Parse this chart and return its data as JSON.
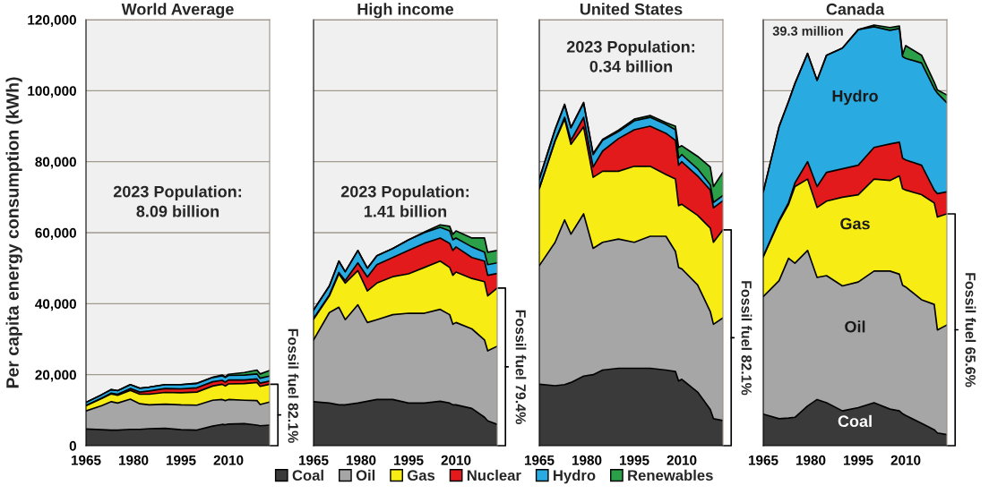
{
  "chart_data": [
    {
      "type": "area",
      "title": "World Average",
      "ylabel": "Per capita energy consumption (kWh)",
      "stacked": true,
      "grid": "y",
      "x": [
        1965,
        1970,
        1973,
        1975,
        1979,
        1982,
        1985,
        1990,
        1995,
        2000,
        2005,
        2008,
        2009,
        2010,
        2015,
        2019,
        2020,
        2023
      ],
      "xlim": [
        1965,
        2023
      ],
      "xticks": [
        1965,
        1980,
        1995,
        2010
      ],
      "ylim": [
        0,
        120000
      ],
      "yticks": [
        {
          "value": 0,
          "label": "0"
        },
        {
          "value": 20000,
          "label": "20,000"
        },
        {
          "value": 40000,
          "label": "40,000"
        },
        {
          "value": 60000,
          "label": "60,000"
        },
        {
          "value": 80000,
          "label": "80,000"
        },
        {
          "value": 100000,
          "label": "100,000"
        },
        {
          "value": 120000,
          "label": "120,000"
        }
      ],
      "series": [
        {
          "color": "#3a3a3a",
          "values": [
            4700,
            4500,
            4400,
            4400,
            4600,
            4600,
            4800,
            4900,
            4500,
            4400,
            5500,
            6000,
            5900,
            6100,
            6200,
            5800,
            5600,
            5800
          ]
        },
        {
          "color": "#a6a6a6",
          "values": [
            5100,
            6800,
            8000,
            7600,
            8500,
            7200,
            6700,
            6800,
            7000,
            7000,
            7300,
            7000,
            6800,
            6900,
            6600,
            6900,
            6000,
            6500
          ]
        },
        {
          "color": "#f7ec13",
          "values": [
            1500,
            2000,
            2200,
            2200,
            2500,
            2700,
            3000,
            3300,
            3400,
            3700,
            4000,
            4300,
            4100,
            4400,
            4700,
            5100,
            5100,
            5000
          ]
        },
        {
          "color": "#e31a1c",
          "values": [
            0,
            100,
            200,
            300,
            500,
            600,
            900,
            1100,
            1100,
            1200,
            1200,
            1100,
            1100,
            1100,
            1000,
            1000,
            900,
            900
          ]
        },
        {
          "color": "#29abe2",
          "values": [
            900,
            1000,
            1000,
            1000,
            1100,
            1100,
            1100,
            1100,
            1200,
            1200,
            1200,
            1300,
            1300,
            1300,
            1400,
            1400,
            1400,
            1400
          ]
        },
        {
          "color": "#2ca049",
          "values": [
            0,
            0,
            0,
            0,
            0,
            0,
            0,
            0,
            0,
            100,
            100,
            200,
            200,
            300,
            700,
            1100,
            1200,
            1600
          ]
        }
      ],
      "annotations": [
        "2023 Population:\n8.09 billion",
        "Fossil fuel 82.1%"
      ]
    },
    {
      "type": "area",
      "title": "High income",
      "stacked": true,
      "grid": "y",
      "legend": "bottom",
      "tick_labels": "x",
      "x": [
        1965,
        1970,
        1973,
        1975,
        1979,
        1982,
        1985,
        1990,
        1995,
        2000,
        2005,
        2008,
        2009,
        2010,
        2015,
        2019,
        2020,
        2023
      ],
      "xlim": [
        1965,
        2023
      ],
      "xticks": [
        1965,
        1980,
        1995,
        2010
      ],
      "ylim": [
        0,
        120000
      ],
      "yticks": [
        0,
        20000,
        40000,
        60000,
        80000,
        100000,
        120000
      ],
      "series": [
        {
          "name": "Coal",
          "color": "#3a3a3a",
          "values": [
            12400,
            12000,
            11500,
            11500,
            12000,
            12500,
            13000,
            13000,
            12000,
            12000,
            12500,
            12000,
            11500,
            11500,
            10500,
            8000,
            7000,
            6000
          ]
        },
        {
          "name": "Oil",
          "color": "#a6a6a6",
          "values": [
            17400,
            25500,
            27500,
            24000,
            27700,
            22200,
            22500,
            23900,
            25300,
            25300,
            25900,
            24900,
            22700,
            23200,
            22400,
            21800,
            19700,
            22000
          ]
        },
        {
          "name": "Gas",
          "color": "#f7ec13",
          "values": [
            5800,
            4700,
            9400,
            10300,
            9600,
            8900,
            10300,
            10700,
            11100,
            12900,
            13600,
            13300,
            13800,
            14200,
            14200,
            16400,
            15500,
            16400
          ]
        },
        {
          "name": "Nuclear",
          "color": "#e31a1c",
          "values": [
            200,
            300,
            400,
            700,
            2200,
            3900,
            5200,
            5400,
            6600,
            6800,
            6500,
            6800,
            7000,
            7100,
            5900,
            5800,
            5800,
            4100
          ]
        },
        {
          "name": "Hydro",
          "color": "#29abe2",
          "values": [
            2400,
            2500,
            3200,
            2500,
            3500,
            2500,
            2500,
            2500,
            3000,
            3000,
            3000,
            3500,
            3000,
            2500,
            3000,
            2500,
            3000,
            3000
          ]
        },
        {
          "name": "Renewables",
          "color": "#2ca049",
          "values": [
            0,
            0,
            0,
            0,
            0,
            0,
            0,
            0,
            0,
            200,
            700,
            1300,
            1500,
            2000,
            2500,
            4000,
            3500,
            3500
          ]
        }
      ],
      "annotations": [
        "2023 Population:\n1.41 billion",
        "Fossil fuel 79.4%"
      ]
    },
    {
      "type": "area",
      "title": "United States",
      "stacked": true,
      "grid": "y",
      "tick_labels": "x",
      "x": [
        1965,
        1970,
        1973,
        1975,
        1979,
        1982,
        1985,
        1990,
        1995,
        2000,
        2005,
        2008,
        2009,
        2010,
        2015,
        2019,
        2020,
        2023
      ],
      "xlim": [
        1965,
        2023
      ],
      "xticks": [
        1965,
        1980,
        1995,
        2010
      ],
      "ylim": [
        0,
        120000
      ],
      "yticks": [
        0,
        20000,
        40000,
        60000,
        80000,
        100000,
        120000
      ],
      "series": [
        {
          "color": "#3a3a3a",
          "values": [
            17300,
            16900,
            17200,
            17800,
            19600,
            20000,
            21300,
            21800,
            21800,
            21800,
            21300,
            20900,
            18200,
            18700,
            15100,
            10200,
            7600,
            7100
          ]
        },
        {
          "color": "#a6a6a6",
          "values": [
            33400,
            40400,
            46400,
            41800,
            45700,
            35600,
            36000,
            36400,
            35500,
            37200,
            37700,
            33800,
            32000,
            31100,
            30200,
            27600,
            26600,
            28900
          ]
        },
        {
          "color": "#f7ec13",
          "values": [
            21700,
            28500,
            28400,
            25300,
            24500,
            20000,
            20000,
            19100,
            21400,
            19700,
            17400,
            20400,
            17400,
            18200,
            19600,
            23500,
            23100,
            24800
          ]
        },
        {
          "color": "#e31a1c",
          "values": [
            100,
            200,
            500,
            1100,
            2700,
            2900,
            5700,
            9200,
            10300,
            11300,
            11600,
            10900,
            11400,
            12000,
            11100,
            10700,
            9700,
            8200
          ]
        },
        {
          "color": "#29abe2",
          "values": [
            2500,
            3000,
            3500,
            3500,
            4000,
            3500,
            3000,
            2000,
            2500,
            2500,
            2500,
            3000,
            2000,
            2000,
            2000,
            1500,
            1500,
            1500
          ]
        },
        {
          "color": "#2ca049",
          "values": [
            200,
            200,
            200,
            200,
            200,
            300,
            300,
            400,
            500,
            500,
            500,
            1000,
            3000,
            2500,
            3500,
            5000,
            4500,
            6500
          ]
        }
      ],
      "annotations": [
        "2023 Population:\n0.34 billion",
        "Fossil fuel 82.1%"
      ]
    },
    {
      "type": "area",
      "title": "Canada",
      "stacked": true,
      "grid": "y",
      "tick_labels": "x",
      "x": [
        1965,
        1970,
        1973,
        1975,
        1979,
        1982,
        1985,
        1990,
        1995,
        2000,
        2005,
        2008,
        2009,
        2010,
        2015,
        2019,
        2020,
        2023
      ],
      "xlim": [
        1965,
        2023
      ],
      "xticks": [
        1965,
        1980,
        1995,
        2010
      ],
      "ylim": [
        0,
        120000
      ],
      "yticks": [
        0,
        20000,
        40000,
        60000,
        80000,
        100000,
        120000
      ],
      "series": [
        {
          "name": "Coal",
          "color": "#3a3a3a",
          "values": [
            8900,
            7600,
            7800,
            8000,
            11200,
            13000,
            12100,
            9800,
            10700,
            12100,
            10300,
            9800,
            9000,
            8500,
            6300,
            4500,
            3600,
            3100
          ]
        },
        {
          "name": "Oil",
          "color": "#a6a6a6",
          "values": [
            33100,
            38900,
            45000,
            43400,
            43800,
            34400,
            35800,
            35200,
            35400,
            37100,
            38900,
            38500,
            36200,
            36200,
            34800,
            35300,
            29000,
            30900
          ]
        },
        {
          "name": "Gas",
          "color": "#f7ec13",
          "values": [
            11200,
            16600,
            15200,
            21600,
            20100,
            19700,
            21000,
            25000,
            24600,
            25900,
            25500,
            27700,
            27200,
            27300,
            29600,
            28600,
            31800,
            31300
          ]
        },
        {
          "color": "#e31a1c",
          "values": [
            100,
            400,
            500,
            1000,
            4900,
            5900,
            8100,
            8000,
            8300,
            8900,
            10300,
            9500,
            8600,
            8500,
            8300,
            3600,
            6600,
            6200
          ]
        },
        {
          "name": "Hydro",
          "color": "#29abe2",
          "values": [
            18200,
            26400,
            28500,
            28000,
            30500,
            29900,
            33000,
            34000,
            38200,
            34000,
            32000,
            32000,
            28600,
            28600,
            28800,
            28600,
            28300,
            25100
          ]
        },
        {
          "color": "#2ca049",
          "values": [
            0,
            0,
            0,
            0,
            0,
            0,
            0,
            0,
            0,
            500,
            800,
            700,
            500,
            3600,
            2200,
            1800,
            900,
            2200
          ]
        }
      ],
      "annotations": [
        "39.3 million",
        "Fossil fuel 65.6%"
      ]
    }
  ]
}
